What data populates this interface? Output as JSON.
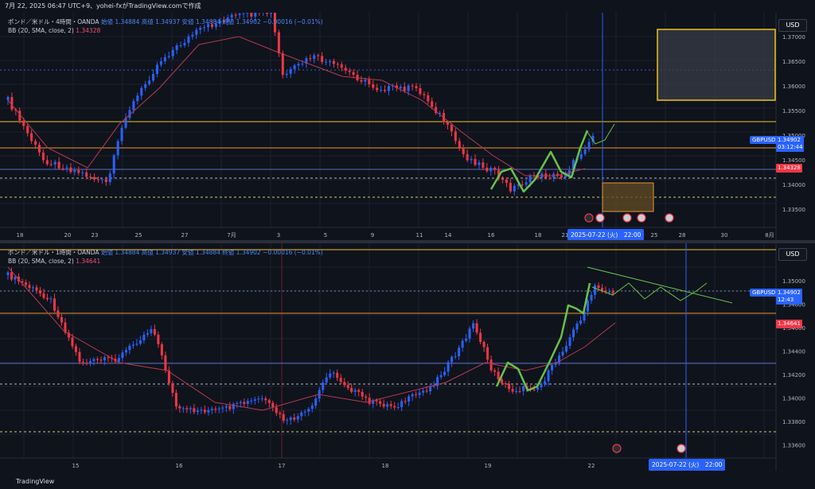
{
  "header": {
    "title": "7月 22, 2025 06:47 UTC+9、yohei-fxがTradingView.comで作成"
  },
  "footer": {
    "brand": "TradingView"
  },
  "colors": {
    "background": "#0f131c",
    "up": "#2962ff",
    "down": "#f23645",
    "bb": "#b83a4f",
    "yellow": "#f0c419",
    "orange": "#e8952c",
    "green": "#66c24a",
    "accent": "#2962ff"
  },
  "charts": [
    {
      "legend1": "ポンド／米ドル・4時間・OANDA",
      "legend1_ohlc": "始値 1.34884  高値 1.34937  安値 1.34884  終値 1.34902  −0.00016 (−0.01%)",
      "legend2": "BB (20, SMA, close, 2)",
      "legend2_value": "1.34328",
      "currency": "USD",
      "symbol_tag": "GBPUSD",
      "price_tag": "1.34902",
      "countdown": "03:12:44",
      "bb_tag": "1.34328",
      "date_tag": "2025-07-22 (火)　22:00",
      "y_ticks": [
        "1.37000",
        "1.36500",
        "1.36000",
        "1.35500",
        "1.35000",
        "1.34500",
        "1.34000",
        "1.33500"
      ],
      "x_ticks": [
        "18",
        "20",
        "23",
        "25",
        "27",
        "7月",
        "3",
        "5",
        "9",
        "11",
        "14",
        "16",
        "18",
        "21",
        "25",
        "28",
        "30",
        "8月"
      ]
    },
    {
      "legend1": "ポンド／米ドル・1時間・OANDA",
      "legend1_ohlc": "始値 1.34884  高値 1.34937  安値 1.34884  終値 1.34902  −0.00016 (−0.01%)",
      "legend2": "BB (20, SMA, close, 2)",
      "legend2_value": "1.34641",
      "currency": "USD",
      "symbol_tag": "GBPUSD",
      "price_tag": "1.34902",
      "countdown": "12:43",
      "bb_tag": "1.34641",
      "date_tag": "2025-07-22 (火)　22:00",
      "y_ticks": [
        "1.35000",
        "1.34800",
        "1.34600",
        "1.34400",
        "1.34200",
        "1.34000",
        "1.33800",
        "1.33600"
      ],
      "x_ticks": [
        "15",
        "16",
        "17",
        "18",
        "19",
        "22"
      ]
    }
  ]
}
